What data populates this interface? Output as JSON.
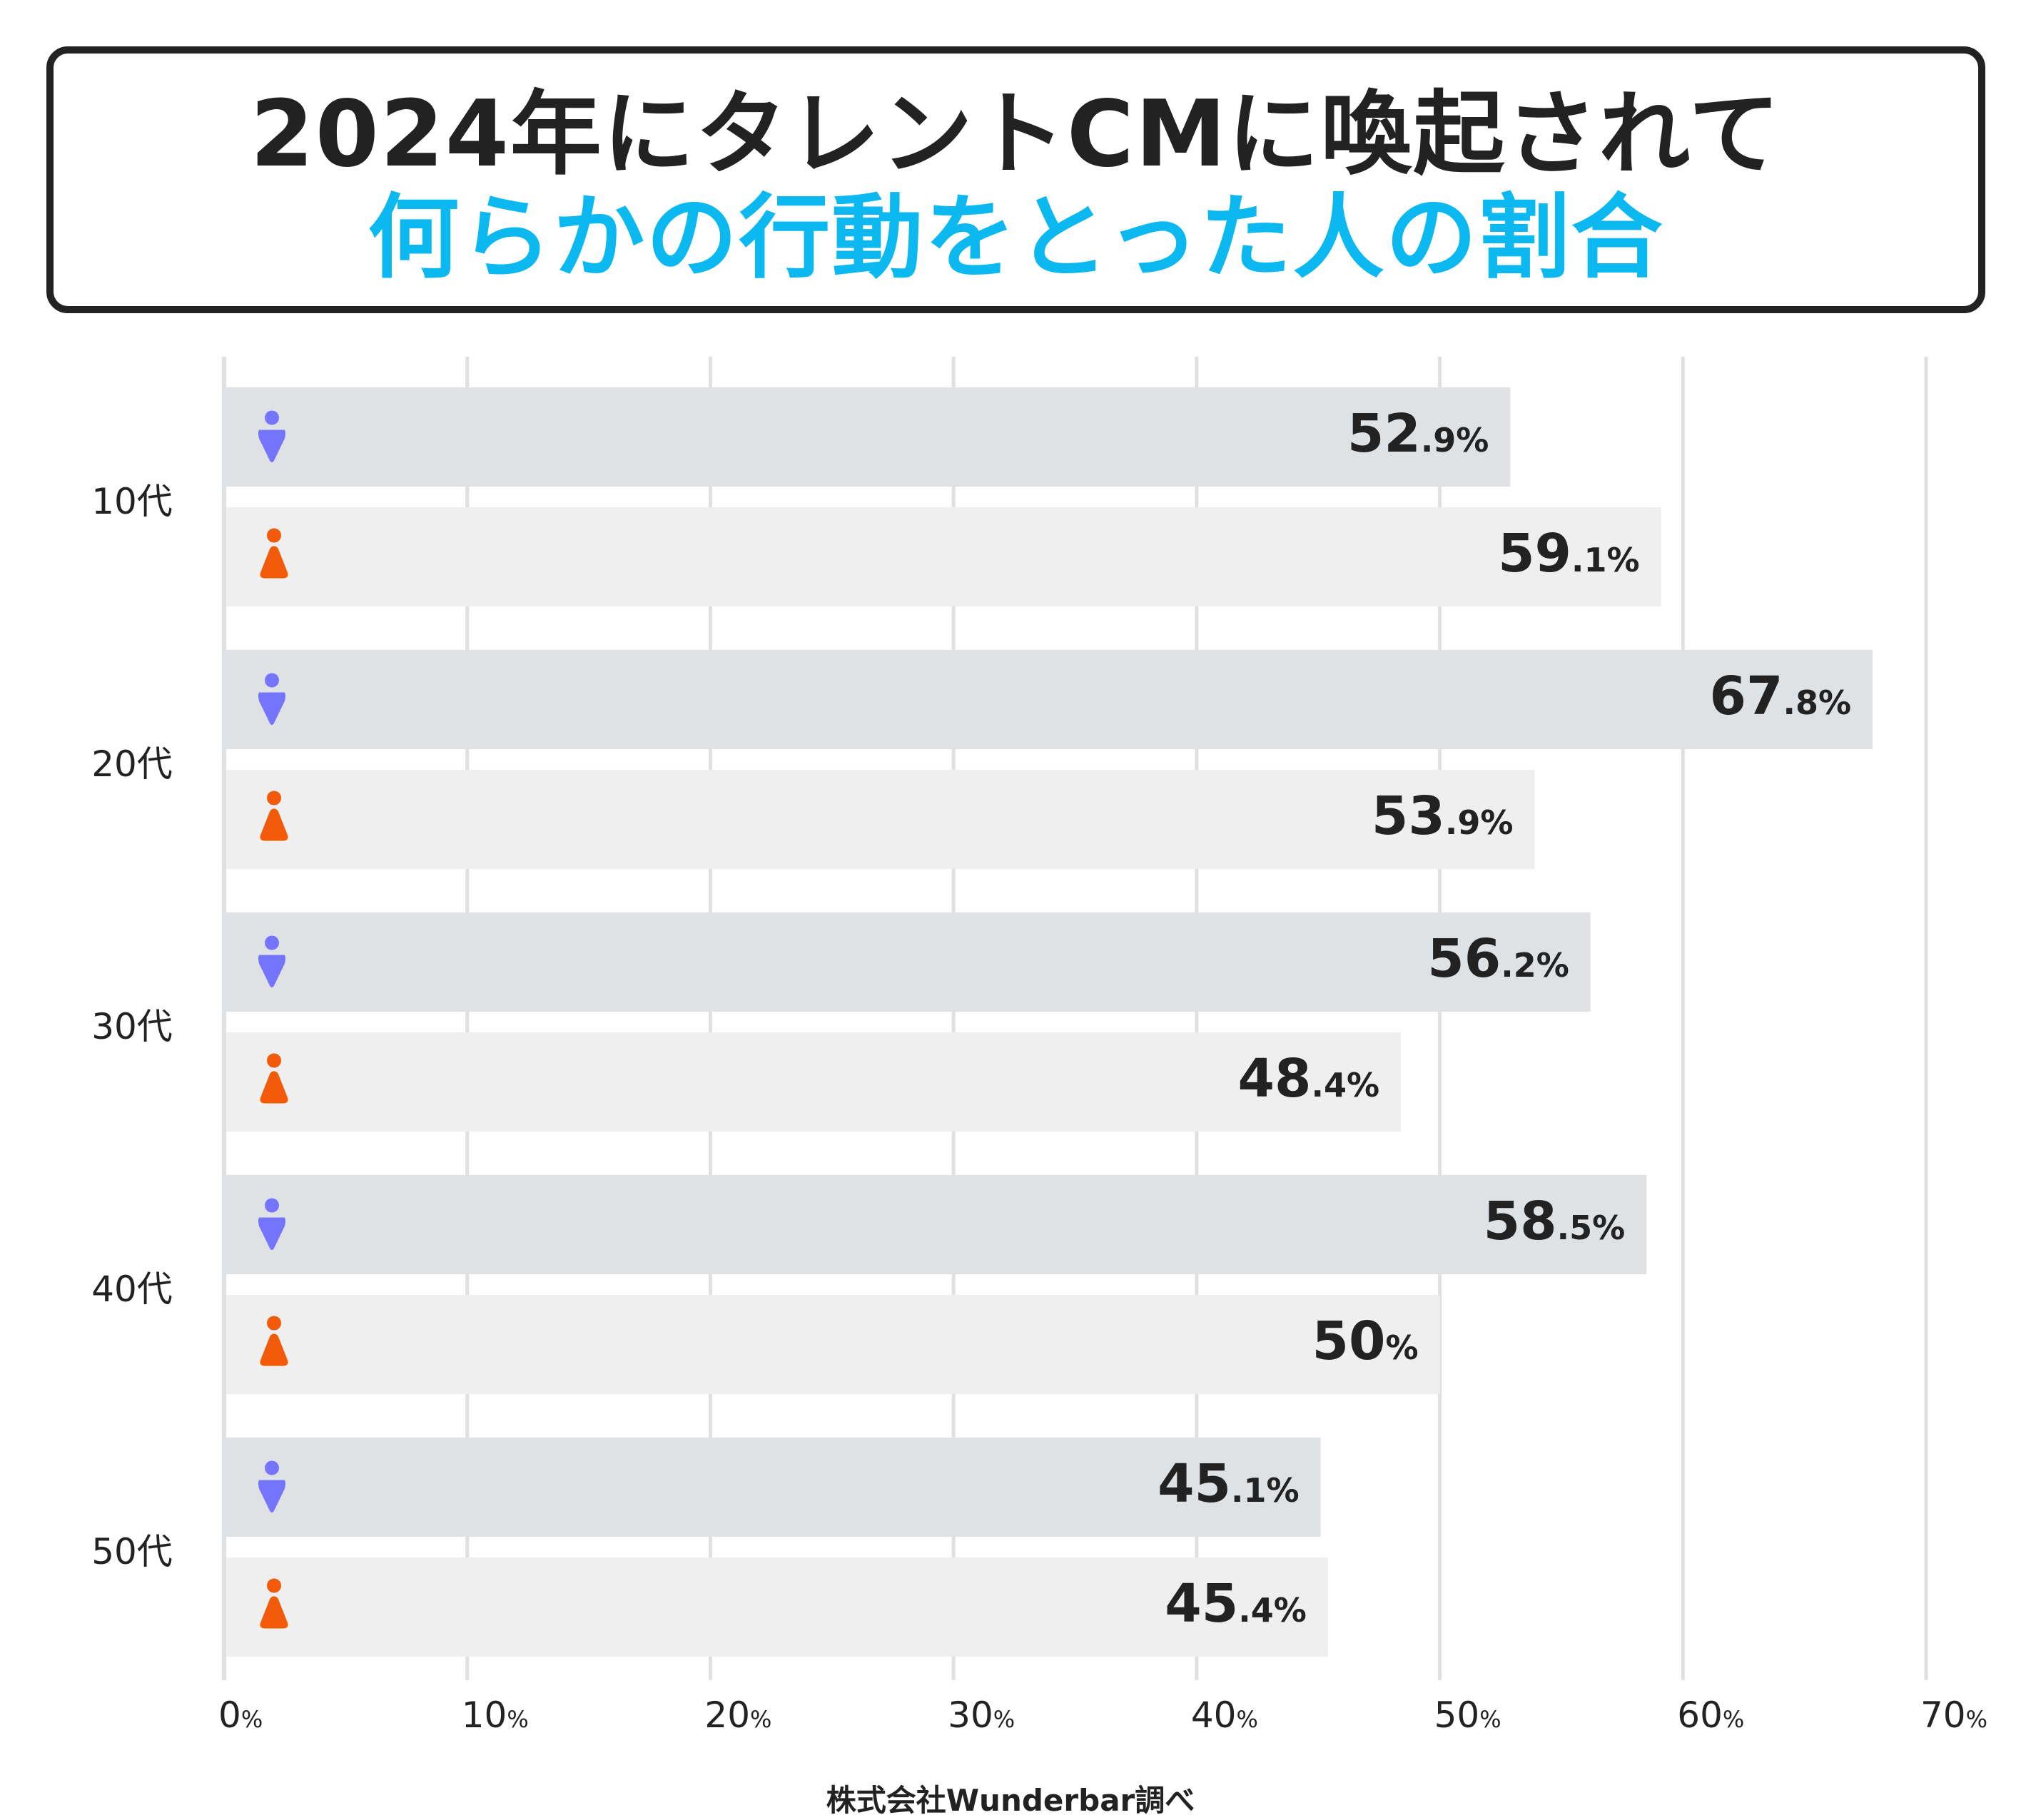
{
  "title": {
    "line1": "2024年にタレントCMに喚起されて",
    "line2": "何らかの行動をとった人の割合"
  },
  "footer": "株式会社Wunderbar調べ",
  "colors": {
    "male_bar": "#dfe2e5",
    "female_bar": "#efefef",
    "male_icon": "#7474fc",
    "female_icon": "#f25a0a",
    "title_accent": "#0cb8f0"
  },
  "chart_data": {
    "type": "bar",
    "orientation": "horizontal",
    "categories": [
      "10代",
      "20代",
      "30代",
      "40代",
      "50代"
    ],
    "series": [
      {
        "name": "男性",
        "icon": "male-person-icon",
        "values": [
          52.9,
          67.8,
          56.2,
          58.5,
          45.1
        ],
        "labels": [
          [
            "52",
            ".9%"
          ],
          [
            "67",
            ".8%"
          ],
          [
            "56",
            ".2%"
          ],
          [
            "58",
            ".5%"
          ],
          [
            "45",
            ".1%"
          ]
        ]
      },
      {
        "name": "女性",
        "icon": "female-person-icon",
        "values": [
          59.1,
          53.9,
          48.4,
          50,
          45.4
        ],
        "labels": [
          [
            "59",
            ".1%"
          ],
          [
            "53",
            ".9%"
          ],
          [
            "48",
            ".4%"
          ],
          [
            "50",
            "%"
          ],
          [
            "45",
            ".4%"
          ]
        ]
      }
    ],
    "xlim": [
      0,
      70
    ],
    "xticks": [
      {
        "num": "0",
        "unit": "%"
      },
      {
        "num": "10",
        "unit": "%"
      },
      {
        "num": "20",
        "unit": "%"
      },
      {
        "num": "30",
        "unit": "%"
      },
      {
        "num": "40",
        "unit": "%"
      },
      {
        "num": "50",
        "unit": "%"
      },
      {
        "num": "60",
        "unit": "%"
      },
      {
        "num": "70",
        "unit": "%"
      }
    ],
    "grid": true,
    "unit": "%"
  }
}
